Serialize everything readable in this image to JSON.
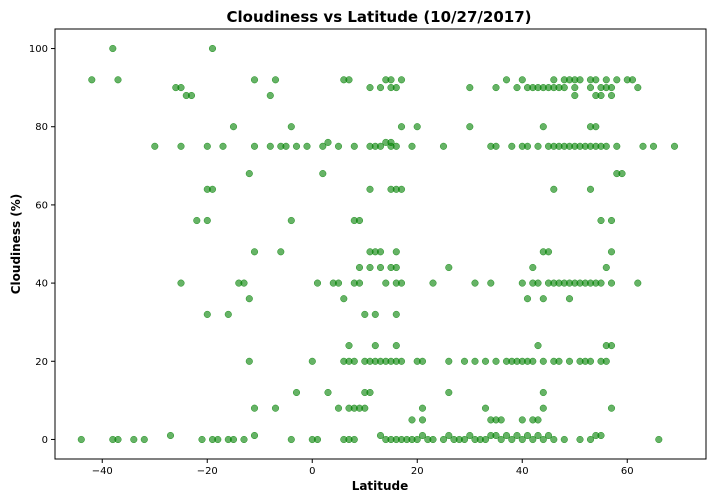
{
  "chart_data": {
    "type": "scatter",
    "title": "Cloudiness vs Latitude (10/27/2017)",
    "xlabel": "Latitude",
    "ylabel": "Cloudiness (%)",
    "xlim": [
      -49,
      75
    ],
    "ylim": [
      -5,
      105
    ],
    "x_ticks": [
      -40,
      -20,
      0,
      20,
      40,
      60
    ],
    "y_ticks": [
      0,
      20,
      40,
      60,
      80,
      100
    ],
    "grid": false,
    "legend": "none",
    "marker_color": "#008000",
    "marker_opacity": 0.6,
    "series": [
      {
        "points": [
          [
            -38,
            100
          ],
          [
            -19,
            100
          ],
          [
            -42,
            92
          ],
          [
            -37,
            92
          ],
          [
            -11,
            92
          ],
          [
            -7,
            92
          ],
          [
            6,
            92
          ],
          [
            7,
            92
          ],
          [
            14,
            92
          ],
          [
            15,
            92
          ],
          [
            17,
            92
          ],
          [
            37,
            92
          ],
          [
            40,
            92
          ],
          [
            46,
            92
          ],
          [
            48,
            92
          ],
          [
            49,
            92
          ],
          [
            50,
            92
          ],
          [
            51,
            92
          ],
          [
            53,
            92
          ],
          [
            54,
            92
          ],
          [
            56,
            92
          ],
          [
            58,
            92
          ],
          [
            60,
            92
          ],
          [
            61,
            92
          ],
          [
            -26,
            90
          ],
          [
            -25,
            90
          ],
          [
            11,
            90
          ],
          [
            13,
            90
          ],
          [
            15,
            90
          ],
          [
            16,
            90
          ],
          [
            30,
            90
          ],
          [
            35,
            90
          ],
          [
            39,
            90
          ],
          [
            41,
            90
          ],
          [
            42,
            90
          ],
          [
            43,
            90
          ],
          [
            44,
            90
          ],
          [
            45,
            90
          ],
          [
            46,
            90
          ],
          [
            47,
            90
          ],
          [
            48,
            90
          ],
          [
            50,
            90
          ],
          [
            53,
            90
          ],
          [
            55,
            90
          ],
          [
            56,
            90
          ],
          [
            57,
            90
          ],
          [
            62,
            90
          ],
          [
            -24,
            88
          ],
          [
            -23,
            88
          ],
          [
            -8,
            88
          ],
          [
            50,
            88
          ],
          [
            54,
            88
          ],
          [
            55,
            88
          ],
          [
            57,
            88
          ],
          [
            -15,
            80
          ],
          [
            -4,
            80
          ],
          [
            17,
            80
          ],
          [
            20,
            80
          ],
          [
            30,
            80
          ],
          [
            44,
            80
          ],
          [
            53,
            80
          ],
          [
            54,
            80
          ],
          [
            -30,
            75
          ],
          [
            -25,
            75
          ],
          [
            -20,
            75
          ],
          [
            -17,
            75
          ],
          [
            -11,
            75
          ],
          [
            -8,
            75
          ],
          [
            -6,
            75
          ],
          [
            -5,
            75
          ],
          [
            -3,
            75
          ],
          [
            -1,
            75
          ],
          [
            2,
            75
          ],
          [
            3,
            76
          ],
          [
            5,
            75
          ],
          [
            8,
            75
          ],
          [
            11,
            75
          ],
          [
            12,
            75
          ],
          [
            13,
            75
          ],
          [
            14,
            76
          ],
          [
            15,
            75
          ],
          [
            15,
            76
          ],
          [
            16,
            75
          ],
          [
            19,
            75
          ],
          [
            25,
            75
          ],
          [
            34,
            75
          ],
          [
            35,
            75
          ],
          [
            38,
            75
          ],
          [
            40,
            75
          ],
          [
            41,
            75
          ],
          [
            43,
            75
          ],
          [
            45,
            75
          ],
          [
            46,
            75
          ],
          [
            47,
            75
          ],
          [
            48,
            75
          ],
          [
            49,
            75
          ],
          [
            50,
            75
          ],
          [
            51,
            75
          ],
          [
            52,
            75
          ],
          [
            53,
            75
          ],
          [
            54,
            75
          ],
          [
            55,
            75
          ],
          [
            56,
            75
          ],
          [
            58,
            75
          ],
          [
            63,
            75
          ],
          [
            65,
            75
          ],
          [
            69,
            75
          ],
          [
            -12,
            68
          ],
          [
            2,
            68
          ],
          [
            58,
            68
          ],
          [
            59,
            68
          ],
          [
            -20,
            64
          ],
          [
            -19,
            64
          ],
          [
            11,
            64
          ],
          [
            15,
            64
          ],
          [
            16,
            64
          ],
          [
            17,
            64
          ],
          [
            46,
            64
          ],
          [
            53,
            64
          ],
          [
            -22,
            56
          ],
          [
            -20,
            56
          ],
          [
            -4,
            56
          ],
          [
            8,
            56
          ],
          [
            9,
            56
          ],
          [
            55,
            56
          ],
          [
            57,
            56
          ],
          [
            -11,
            48
          ],
          [
            -6,
            48
          ],
          [
            11,
            48
          ],
          [
            12,
            48
          ],
          [
            13,
            48
          ],
          [
            16,
            48
          ],
          [
            44,
            48
          ],
          [
            45,
            48
          ],
          [
            57,
            48
          ],
          [
            -25,
            40
          ],
          [
            -14,
            40
          ],
          [
            -13,
            40
          ],
          [
            1,
            40
          ],
          [
            4,
            40
          ],
          [
            5,
            40
          ],
          [
            8,
            40
          ],
          [
            9,
            40
          ],
          [
            14,
            40
          ],
          [
            16,
            40
          ],
          [
            17,
            40
          ],
          [
            23,
            40
          ],
          [
            31,
            40
          ],
          [
            34,
            40
          ],
          [
            40,
            40
          ],
          [
            42,
            40
          ],
          [
            43,
            40
          ],
          [
            45,
            40
          ],
          [
            46,
            40
          ],
          [
            47,
            40
          ],
          [
            48,
            40
          ],
          [
            49,
            40
          ],
          [
            50,
            40
          ],
          [
            51,
            40
          ],
          [
            52,
            40
          ],
          [
            53,
            40
          ],
          [
            54,
            40
          ],
          [
            55,
            40
          ],
          [
            57,
            40
          ],
          [
            62,
            40
          ],
          [
            9,
            44
          ],
          [
            11,
            44
          ],
          [
            13,
            44
          ],
          [
            15,
            44
          ],
          [
            16,
            44
          ],
          [
            26,
            44
          ],
          [
            42,
            44
          ],
          [
            56,
            44
          ],
          [
            -12,
            36
          ],
          [
            6,
            36
          ],
          [
            41,
            36
          ],
          [
            44,
            36
          ],
          [
            49,
            36
          ],
          [
            -20,
            32
          ],
          [
            -16,
            32
          ],
          [
            10,
            32
          ],
          [
            12,
            32
          ],
          [
            16,
            32
          ],
          [
            -12,
            20
          ],
          [
            0,
            20
          ],
          [
            6,
            20
          ],
          [
            7,
            20
          ],
          [
            8,
            20
          ],
          [
            10,
            20
          ],
          [
            11,
            20
          ],
          [
            12,
            20
          ],
          [
            13,
            20
          ],
          [
            14,
            20
          ],
          [
            15,
            20
          ],
          [
            16,
            20
          ],
          [
            17,
            20
          ],
          [
            20,
            20
          ],
          [
            21,
            20
          ],
          [
            26,
            20
          ],
          [
            29,
            20
          ],
          [
            31,
            20
          ],
          [
            33,
            20
          ],
          [
            35,
            20
          ],
          [
            37,
            20
          ],
          [
            38,
            20
          ],
          [
            39,
            20
          ],
          [
            40,
            20
          ],
          [
            41,
            20
          ],
          [
            42,
            20
          ],
          [
            44,
            20
          ],
          [
            46,
            20
          ],
          [
            47,
            20
          ],
          [
            49,
            20
          ],
          [
            51,
            20
          ],
          [
            52,
            20
          ],
          [
            53,
            20
          ],
          [
            55,
            20
          ],
          [
            56,
            20
          ],
          [
            7,
            24
          ],
          [
            12,
            24
          ],
          [
            16,
            24
          ],
          [
            43,
            24
          ],
          [
            56,
            24
          ],
          [
            57,
            24
          ],
          [
            -11,
            8
          ],
          [
            -7,
            8
          ],
          [
            5,
            8
          ],
          [
            7,
            8
          ],
          [
            8,
            8
          ],
          [
            9,
            8
          ],
          [
            10,
            8
          ],
          [
            21,
            8
          ],
          [
            33,
            8
          ],
          [
            44,
            8
          ],
          [
            57,
            8
          ],
          [
            -3,
            12
          ],
          [
            3,
            12
          ],
          [
            10,
            12
          ],
          [
            11,
            12
          ],
          [
            26,
            12
          ],
          [
            44,
            12
          ],
          [
            19,
            5
          ],
          [
            21,
            5
          ],
          [
            34,
            5
          ],
          [
            35,
            5
          ],
          [
            36,
            5
          ],
          [
            40,
            5
          ],
          [
            42,
            5
          ],
          [
            43,
            5
          ],
          [
            -44,
            0
          ],
          [
            -38,
            0
          ],
          [
            -37,
            0
          ],
          [
            -34,
            0
          ],
          [
            -32,
            0
          ],
          [
            -27,
            1
          ],
          [
            -21,
            0
          ],
          [
            -19,
            0
          ],
          [
            -18,
            0
          ],
          [
            -16,
            0
          ],
          [
            -15,
            0
          ],
          [
            -13,
            0
          ],
          [
            -11,
            1
          ],
          [
            -4,
            0
          ],
          [
            0,
            0
          ],
          [
            1,
            0
          ],
          [
            6,
            0
          ],
          [
            7,
            0
          ],
          [
            8,
            0
          ],
          [
            13,
            1
          ],
          [
            14,
            0
          ],
          [
            15,
            0
          ],
          [
            16,
            0
          ],
          [
            17,
            0
          ],
          [
            18,
            0
          ],
          [
            19,
            0
          ],
          [
            20,
            0
          ],
          [
            21,
            1
          ],
          [
            22,
            0
          ],
          [
            23,
            0
          ],
          [
            25,
            0
          ],
          [
            26,
            1
          ],
          [
            27,
            0
          ],
          [
            28,
            0
          ],
          [
            29,
            0
          ],
          [
            30,
            1
          ],
          [
            31,
            0
          ],
          [
            32,
            0
          ],
          [
            33,
            0
          ],
          [
            34,
            1
          ],
          [
            35,
            1
          ],
          [
            36,
            0
          ],
          [
            37,
            1
          ],
          [
            38,
            0
          ],
          [
            39,
            1
          ],
          [
            40,
            0
          ],
          [
            41,
            1
          ],
          [
            42,
            0
          ],
          [
            43,
            1
          ],
          [
            44,
            0
          ],
          [
            45,
            1
          ],
          [
            46,
            0
          ],
          [
            48,
            0
          ],
          [
            51,
            0
          ],
          [
            53,
            0
          ],
          [
            54,
            1
          ],
          [
            55,
            1
          ],
          [
            66,
            0
          ]
        ]
      }
    ]
  }
}
